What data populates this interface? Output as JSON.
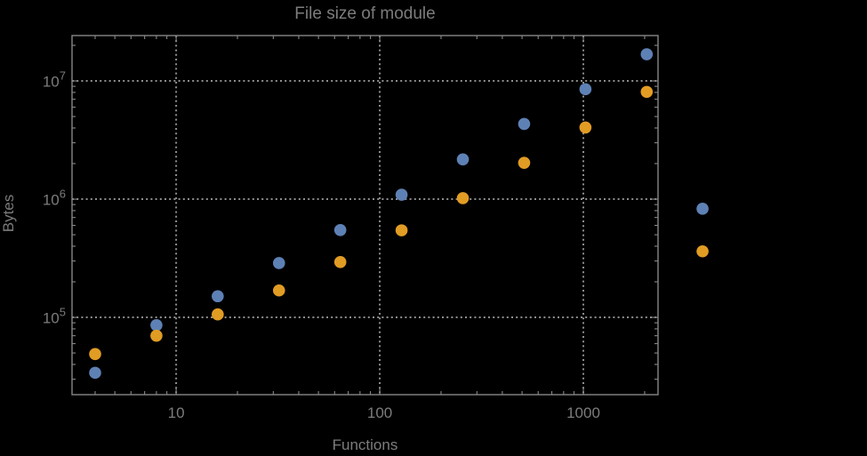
{
  "chart_data": {
    "type": "scatter",
    "title": "File size of module",
    "xlabel": "Functions",
    "ylabel": "Bytes",
    "x_scale": "log",
    "y_scale": "log",
    "grid": "dotted-major",
    "legend_position": "none",
    "x": [
      4,
      8,
      16,
      32,
      64,
      128,
      256,
      512,
      1024,
      2048
    ],
    "series": [
      {
        "name": "blue",
        "color": "#5e81b5",
        "values": [
          34000,
          86000,
          151000,
          288000,
          548000,
          1090000,
          2170000,
          4330000,
          8510000,
          16800000
        ]
      },
      {
        "name": "orange",
        "color": "#e19c24",
        "values": [
          49000,
          70000,
          106000,
          169000,
          294000,
          545000,
          1020000,
          2030000,
          4040000,
          8080000
        ]
      }
    ],
    "unlabeled_right_markers": [
      {
        "series": "blue",
        "color": "#5e81b5",
        "x": 3850,
        "y": 830000
      },
      {
        "series": "orange",
        "color": "#e19c24",
        "x": 3850,
        "y": 362000
      }
    ]
  },
  "axes": {
    "x": {
      "scale": "log",
      "range": [
        3.08,
        2327
      ],
      "ticks": [
        10,
        100,
        1000
      ],
      "tick_labels": [
        "10",
        "100",
        "1000"
      ]
    },
    "y": {
      "scale": "log",
      "range": [
        22200,
        24200000
      ],
      "ticks": [
        100000,
        1000000,
        10000000
      ],
      "tick_labels": [
        {
          "mantissa": "10",
          "exponent": "5"
        },
        {
          "mantissa": "10",
          "exponent": "6"
        },
        {
          "mantissa": "10",
          "exponent": "7"
        }
      ]
    }
  },
  "colors": {
    "background": "#000000",
    "frame": "#878787",
    "grid": "#8e8e8e",
    "text": "#7c7c7c",
    "series_blue": "#5e81b5",
    "series_orange": "#e19c24"
  }
}
